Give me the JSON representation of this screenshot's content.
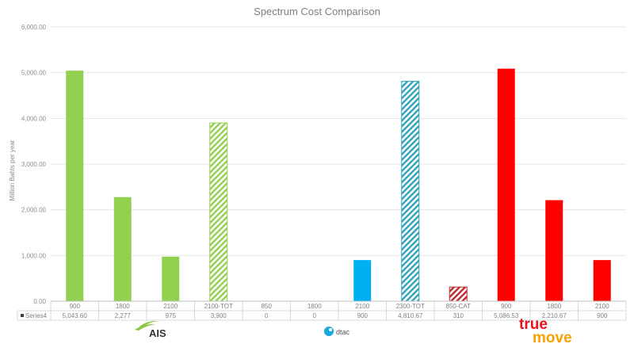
{
  "chart_data": {
    "type": "bar",
    "title": "Spectrum Cost Comparison",
    "ylabel": "Million Bahts per year",
    "ylim": [
      0,
      6000
    ],
    "yticks": [
      "0.00",
      "1,000.00",
      "2,000.00",
      "3,000.00",
      "4,000.00",
      "5,000.00",
      "6,000.00"
    ],
    "grid": true,
    "categories": [
      "900",
      "1800",
      "2100",
      "2100-TOT",
      "850",
      "1800",
      "2100",
      "2300-TOT",
      "850-CAT",
      "900",
      "1800",
      "2100"
    ],
    "series": [
      {
        "name": "Series4",
        "values": [
          5043.6,
          2277,
          975,
          3900,
          0,
          0,
          900,
          4810.67,
          310,
          5086.53,
          2210.67,
          900
        ],
        "value_labels": [
          "5,043.60",
          "2,277",
          "975",
          "3,900",
          "0",
          "0",
          "900",
          "4,810.67",
          "310",
          "5,086.53",
          "2,210.67",
          "900"
        ],
        "colors": [
          "#92d050",
          "#92d050",
          "#92d050",
          "#92d050",
          "#92d050",
          "#00b0f0",
          "#00b0f0",
          "#31a2b8",
          "#c0282d",
          "#ff0000",
          "#ff0000",
          "#ff0000"
        ],
        "hatched": [
          false,
          false,
          false,
          true,
          false,
          false,
          false,
          true,
          true,
          false,
          false,
          false
        ]
      }
    ]
  },
  "operators": [
    {
      "name": "AIS",
      "logo": "ais-logo"
    },
    {
      "name": "dtac",
      "logo": "dtac-logo"
    },
    {
      "name": "true",
      "name2": "move",
      "logo": "truemove-logo"
    }
  ]
}
